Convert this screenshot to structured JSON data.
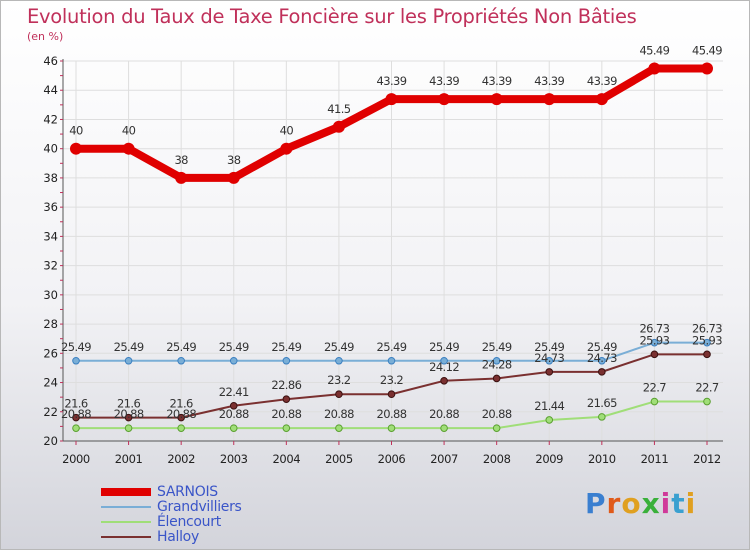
{
  "chart_data": {
    "type": "line",
    "title": "Evolution du Taux de Taxe Foncière sur les Propriétés Non Bâties",
    "subtitle": "(en %)",
    "x": [
      "2000",
      "2001",
      "2002",
      "2003",
      "2004",
      "2005",
      "2006",
      "2007",
      "2008",
      "2009",
      "2010",
      "2011",
      "2012"
    ],
    "ylim": [
      20,
      46
    ],
    "yticks": [
      "20",
      "22",
      "24",
      "26",
      "28",
      "30",
      "32",
      "34",
      "36",
      "38",
      "40",
      "42",
      "44",
      "46"
    ],
    "grid": true,
    "legend_position": "bottom-left",
    "series": [
      {
        "name": "SARNOIS",
        "color": "#e00000",
        "values": [
          40,
          40,
          38,
          38,
          40,
          41.5,
          43.39,
          43.39,
          43.39,
          43.39,
          43.39,
          45.49,
          45.49
        ],
        "labels": [
          "40",
          "40",
          "38",
          "38",
          "40",
          "41.5",
          "43.39",
          "43.39",
          "43.39",
          "43.39",
          "43.39",
          "45.49",
          "45.49"
        ]
      },
      {
        "name": "Grandvilliers",
        "color": "#7aaed6",
        "values": [
          25.49,
          25.49,
          25.49,
          25.49,
          25.49,
          25.49,
          25.49,
          25.49,
          25.49,
          25.49,
          25.49,
          26.73,
          26.73
        ],
        "labels": [
          "25.49",
          "25.49",
          "25.49",
          "25.49",
          "25.49",
          "25.49",
          "25.49",
          "25.49",
          "25.49",
          "25.49",
          "25.49",
          "26.73",
          "26.73"
        ]
      },
      {
        "name": "Élencourt",
        "color": "#a0de78",
        "values": [
          20.88,
          20.88,
          20.88,
          20.88,
          20.88,
          20.88,
          20.88,
          20.88,
          20.88,
          21.44,
          21.65,
          22.7,
          22.7
        ],
        "labels": [
          "20.88",
          "20.88",
          "20.88",
          "20.88",
          "20.88",
          "20.88",
          "20.88",
          "20.88",
          "20.88",
          "21.44",
          "21.65",
          "22.7",
          "22.7"
        ]
      },
      {
        "name": "Halloy",
        "color": "#7a3030",
        "values": [
          21.6,
          21.6,
          21.6,
          22.41,
          22.86,
          23.2,
          23.2,
          24.12,
          24.28,
          24.73,
          24.73,
          25.93,
          25.93
        ],
        "labels": [
          "21.6",
          "21.6",
          "21.6",
          "22.41",
          "22.86",
          "23.2",
          "23.2",
          "24.12",
          "24.28",
          "24.73",
          "24.73",
          "25.93",
          "25.93"
        ]
      }
    ]
  },
  "logo": {
    "text": "Proxiti",
    "colors": [
      "#3a7fd0",
      "#e05a1a",
      "#e0a020",
      "#3ab03a",
      "#d03a9a",
      "#3aa0d0",
      "#e0a020"
    ]
  }
}
